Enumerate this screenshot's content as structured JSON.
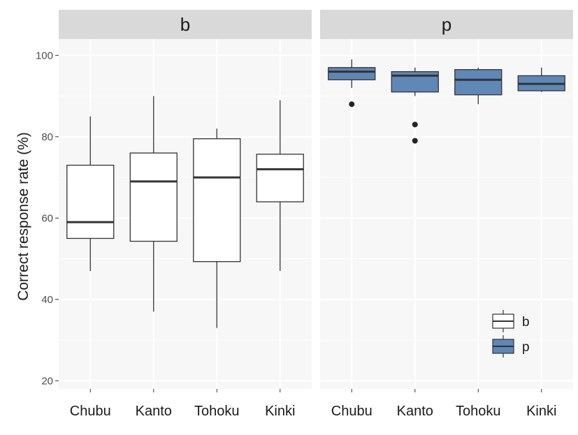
{
  "chart_data": {
    "type": "boxplot",
    "ylabel": "Correct response rate (%)",
    "ylim": [
      18,
      104
    ],
    "yticks": [
      20,
      40,
      60,
      80,
      100
    ],
    "categories": [
      "Chubu",
      "Kanto",
      "Tohoku",
      "Kinki"
    ],
    "grid": true,
    "legend": {
      "placement": "bottom-right of panel p",
      "entries": [
        {
          "label": "b",
          "color": "#ffffff"
        },
        {
          "label": "p",
          "color": "#5f87b8"
        }
      ]
    },
    "panels": [
      {
        "strip": "b",
        "fill": "#ffffff",
        "boxes": [
          {
            "category": "Chubu",
            "min": 47,
            "q1": 55,
            "median": 59,
            "q3": 73,
            "max": 85,
            "outliers": []
          },
          {
            "category": "Kanto",
            "min": 37,
            "q1": 54.3,
            "median": 69,
            "q3": 76,
            "max": 90,
            "outliers": []
          },
          {
            "category": "Tohoku",
            "min": 33,
            "q1": 49.3,
            "median": 70,
            "q3": 79.5,
            "max": 82,
            "outliers": []
          },
          {
            "category": "Kinki",
            "min": 47,
            "q1": 64,
            "median": 72,
            "q3": 75.7,
            "max": 89,
            "outliers": []
          }
        ]
      },
      {
        "strip": "p",
        "fill": "#5f87b8",
        "boxes": [
          {
            "category": "Chubu",
            "min": 92,
            "q1": 94,
            "median": 96,
            "q3": 97,
            "max": 99,
            "outliers": [
              88
            ]
          },
          {
            "category": "Kanto",
            "min": 90,
            "q1": 91,
            "median": 95,
            "q3": 96,
            "max": 97,
            "outliers": [
              83,
              79
            ]
          },
          {
            "category": "Tohoku",
            "min": 88,
            "q1": 90.3,
            "median": 94,
            "q3": 96.5,
            "max": 97,
            "outliers": []
          },
          {
            "category": "Kinki",
            "min": 91,
            "q1": 91.3,
            "median": 93,
            "q3": 95,
            "max": 97,
            "outliers": []
          }
        ]
      }
    ]
  }
}
